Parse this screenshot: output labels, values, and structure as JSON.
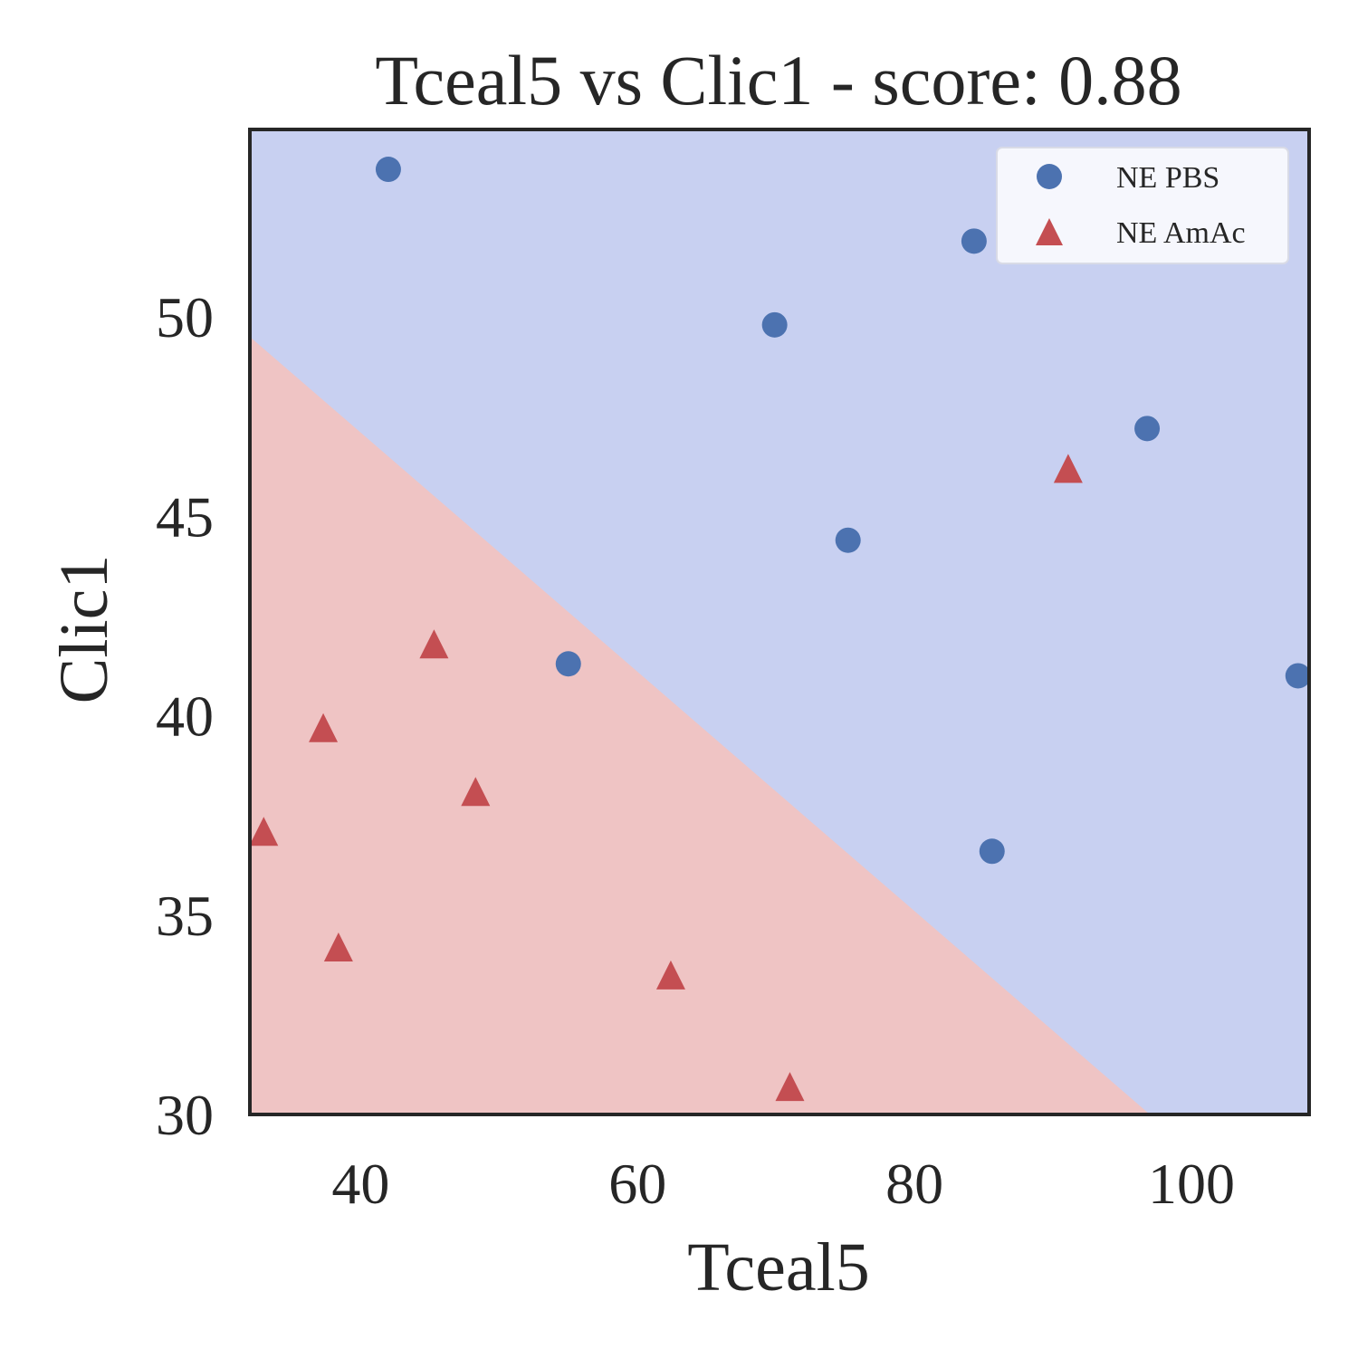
{
  "chart_data": {
    "type": "scatter",
    "title": "Tceal5 vs Clic1 - score: 0.88",
    "xlabel": "Tceal5",
    "ylabel": "Clic1",
    "xlim": [
      32,
      108.5
    ],
    "ylim": [
      30,
      54.7
    ],
    "xticks": [
      40,
      60,
      80,
      100
    ],
    "yticks": [
      30,
      35,
      40,
      45,
      50
    ],
    "grid": false,
    "legend_position": "top-right",
    "decision_boundary": {
      "description_points": [
        [
          32,
          49.5
        ],
        [
          97,
          30
        ]
      ],
      "regions": [
        {
          "class": "NE AmAc",
          "side": "below",
          "color": "#efc4c4"
        },
        {
          "class": "NE PBS",
          "side": "above",
          "color": "#c8d0f1"
        }
      ]
    },
    "series": [
      {
        "name": "NE PBS",
        "marker": "circle",
        "color": "#4c72b0",
        "points": [
          [
            42,
            53.7
          ],
          [
            84.3,
            51.9
          ],
          [
            69.9,
            49.8
          ],
          [
            96.8,
            47.2
          ],
          [
            75.2,
            44.4
          ],
          [
            55,
            41.3
          ],
          [
            107.7,
            41.0
          ],
          [
            85.6,
            36.6
          ]
        ]
      },
      {
        "name": "NE AmAc",
        "marker": "triangle",
        "color": "#c44e52",
        "points": [
          [
            91.1,
            46.2
          ],
          [
            45.3,
            41.8
          ],
          [
            37.3,
            39.7
          ],
          [
            48.3,
            38.1
          ],
          [
            33.0,
            37.1
          ],
          [
            38.4,
            34.2
          ],
          [
            62.4,
            33.5
          ],
          [
            71.0,
            30.7
          ]
        ]
      }
    ]
  }
}
